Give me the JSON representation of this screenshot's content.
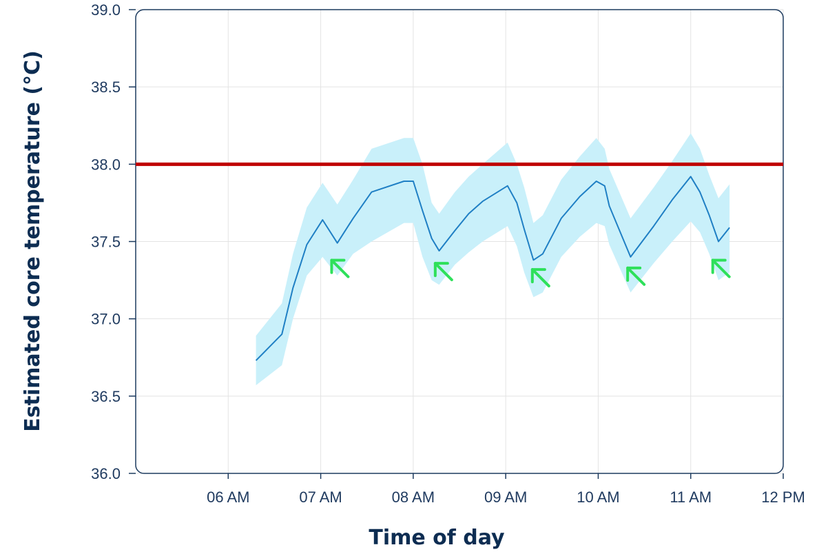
{
  "chart_data": {
    "type": "line",
    "xlabel": "Time of day",
    "ylabel": "Estimated core temperature (°C)",
    "x_tick_labels": [
      "06 AM",
      "07 AM",
      "08 AM",
      "09 AM",
      "10 AM",
      "11 AM",
      "12 PM"
    ],
    "x_tick_hours": [
      6,
      7,
      8,
      9,
      10,
      11,
      12
    ],
    "y_tick_labels": [
      "36.0",
      "36.5",
      "37.0",
      "37.5",
      "38.0",
      "38.5",
      "39.0"
    ],
    "y_tick_values": [
      36.0,
      36.5,
      37.0,
      37.5,
      38.0,
      38.5,
      39.0
    ],
    "xlim_hours": [
      5,
      12
    ],
    "ylim": [
      36.0,
      39.0
    ],
    "grid": true,
    "threshold": {
      "value": 38.0,
      "color": "#c00000"
    },
    "series": [
      {
        "color": "#1f7fc4",
        "band_color": "#c9f0fa",
        "points": [
          {
            "time_h": 6.3,
            "y": 36.73,
            "lo": 36.57,
            "hi": 36.89
          },
          {
            "time_h": 6.58,
            "y": 36.9,
            "lo": 36.7,
            "hi": 37.1
          },
          {
            "time_h": 6.7,
            "y": 37.2,
            "lo": 37.0,
            "hi": 37.42
          },
          {
            "time_h": 6.85,
            "y": 37.48,
            "lo": 37.28,
            "hi": 37.72
          },
          {
            "time_h": 7.02,
            "y": 37.64,
            "lo": 37.4,
            "hi": 37.88
          },
          {
            "time_h": 7.18,
            "y": 37.49,
            "lo": 37.28,
            "hi": 37.74
          },
          {
            "time_h": 7.35,
            "y": 37.65,
            "lo": 37.42,
            "hi": 37.9
          },
          {
            "time_h": 7.55,
            "y": 37.82,
            "lo": 37.5,
            "hi": 38.1
          },
          {
            "time_h": 7.9,
            "y": 37.89,
            "lo": 37.62,
            "hi": 38.17
          },
          {
            "time_h": 8.0,
            "y": 37.89,
            "lo": 37.62,
            "hi": 38.17
          },
          {
            "time_h": 8.1,
            "y": 37.7,
            "lo": 37.4,
            "hi": 38.0
          },
          {
            "time_h": 8.2,
            "y": 37.52,
            "lo": 37.25,
            "hi": 37.75
          },
          {
            "time_h": 8.28,
            "y": 37.44,
            "lo": 37.22,
            "hi": 37.68
          },
          {
            "time_h": 8.45,
            "y": 37.57,
            "lo": 37.35,
            "hi": 37.82
          },
          {
            "time_h": 8.6,
            "y": 37.68,
            "lo": 37.43,
            "hi": 37.92
          },
          {
            "time_h": 8.75,
            "y": 37.76,
            "lo": 37.5,
            "hi": 38.0
          },
          {
            "time_h": 9.02,
            "y": 37.86,
            "lo": 37.6,
            "hi": 38.14
          },
          {
            "time_h": 9.12,
            "y": 37.75,
            "lo": 37.47,
            "hi": 38.0
          },
          {
            "time_h": 9.2,
            "y": 37.58,
            "lo": 37.3,
            "hi": 37.85
          },
          {
            "time_h": 9.3,
            "y": 37.38,
            "lo": 37.14,
            "hi": 37.62
          },
          {
            "time_h": 9.4,
            "y": 37.42,
            "lo": 37.17,
            "hi": 37.67
          },
          {
            "time_h": 9.6,
            "y": 37.65,
            "lo": 37.4,
            "hi": 37.9
          },
          {
            "time_h": 9.8,
            "y": 37.79,
            "lo": 37.53,
            "hi": 38.05
          },
          {
            "time_h": 9.98,
            "y": 37.89,
            "lo": 37.62,
            "hi": 38.17
          },
          {
            "time_h": 10.07,
            "y": 37.86,
            "lo": 37.6,
            "hi": 38.1
          },
          {
            "time_h": 10.12,
            "y": 37.73,
            "lo": 37.48,
            "hi": 37.97
          },
          {
            "time_h": 10.35,
            "y": 37.4,
            "lo": 37.17,
            "hi": 37.65
          },
          {
            "time_h": 10.6,
            "y": 37.6,
            "lo": 37.36,
            "hi": 37.85
          },
          {
            "time_h": 10.8,
            "y": 37.77,
            "lo": 37.5,
            "hi": 38.02
          },
          {
            "time_h": 11.0,
            "y": 37.92,
            "lo": 37.63,
            "hi": 38.2
          },
          {
            "time_h": 11.1,
            "y": 37.82,
            "lo": 37.56,
            "hi": 38.1
          },
          {
            "time_h": 11.2,
            "y": 37.67,
            "lo": 37.42,
            "hi": 37.93
          },
          {
            "time_h": 11.3,
            "y": 37.5,
            "lo": 37.25,
            "hi": 37.78
          },
          {
            "time_h": 11.42,
            "y": 37.59,
            "lo": 37.3,
            "hi": 37.87
          }
        ]
      }
    ],
    "annotations": {
      "type": "arrow",
      "color": "#2ee05a",
      "points": [
        {
          "time_h": 7.2,
          "y": 37.33
        },
        {
          "time_h": 8.32,
          "y": 37.31
        },
        {
          "time_h": 9.37,
          "y": 37.27
        },
        {
          "time_h": 10.4,
          "y": 37.28
        },
        {
          "time_h": 11.32,
          "y": 37.33
        }
      ]
    }
  }
}
